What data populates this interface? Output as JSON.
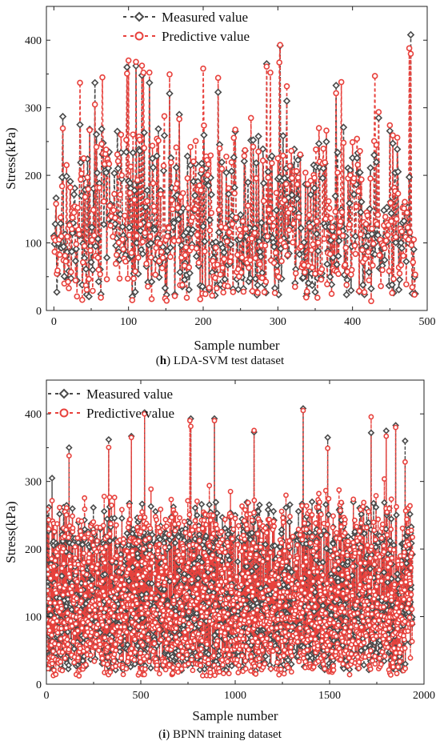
{
  "chart_data": [
    {
      "type": "line",
      "panel_label": "h",
      "caption": "LDA-SVM test dataset",
      "xlabel": "Sample number",
      "ylabel": "Stress(kPa)",
      "xlim": [
        -10,
        500
      ],
      "ylim": [
        0,
        450
      ],
      "xticks": [
        0,
        100,
        200,
        300,
        400,
        500
      ],
      "yticks": [
        0,
        100,
        200,
        300,
        400
      ],
      "n_samples": 485,
      "grid": false,
      "legend_position": "top-left",
      "series": [
        {
          "name": "Measured value",
          "color": "#4a4a4a",
          "marker": "diamond",
          "peaks": [
            [
              12,
              287
            ],
            [
              35,
              275
            ],
            [
              55,
              337
            ],
            [
              85,
              265
            ],
            [
              98,
              360
            ],
            [
              110,
              362
            ],
            [
              118,
              348
            ],
            [
              128,
              337
            ],
            [
              155,
              321
            ],
            [
              168,
              290
            ],
            [
              220,
              323
            ],
            [
              285,
              365
            ],
            [
              303,
              392
            ],
            [
              312,
              310
            ],
            [
              378,
              333
            ],
            [
              388,
              271
            ],
            [
              435,
              285
            ],
            [
              478,
              408
            ]
          ]
        },
        {
          "name": "Predictive value",
          "color": "#e8413c",
          "marker": "circle",
          "peaks": [
            [
              35,
              337
            ],
            [
              65,
              345
            ],
            [
              100,
              370
            ],
            [
              120,
              352
            ],
            [
              200,
              358
            ],
            [
              290,
              352
            ],
            [
              302,
              367
            ],
            [
              385,
              338
            ],
            [
              430,
              347
            ],
            [
              476,
              388
            ]
          ]
        }
      ]
    },
    {
      "type": "line",
      "panel_label": "i",
      "caption": "BPNN training dataset",
      "xlabel": "Sample number",
      "ylabel": "Stress(kPa)",
      "xlim": [
        0,
        2000
      ],
      "ylim": [
        0,
        450
      ],
      "xticks": [
        0,
        500,
        1000,
        1500,
        2000
      ],
      "yticks": [
        0,
        100,
        200,
        300,
        400
      ],
      "n_samples": 1940,
      "grid": false,
      "legend_position": "top-left",
      "series": [
        {
          "name": "Measured value",
          "color": "#4a4a4a",
          "marker": "diamond",
          "peaks": [
            [
              30,
              305
            ],
            [
              120,
              350
            ],
            [
              330,
              362
            ],
            [
              450,
              367
            ],
            [
              520,
              402
            ],
            [
              765,
              393
            ],
            [
              890,
              393
            ],
            [
              1100,
              373
            ],
            [
              1360,
              408
            ],
            [
              1490,
              365
            ],
            [
              1720,
              372
            ],
            [
              1800,
              375
            ],
            [
              1850,
              383
            ],
            [
              1900,
              360
            ]
          ]
        },
        {
          "name": "Predictive value",
          "color": "#e8413c",
          "marker": "circle",
          "peaks": [
            [
              520,
              400
            ],
            [
              760,
              390
            ],
            [
              1360,
              405
            ],
            [
              1850,
              380
            ],
            [
              450,
              365
            ],
            [
              890,
              390
            ]
          ]
        }
      ]
    }
  ]
}
